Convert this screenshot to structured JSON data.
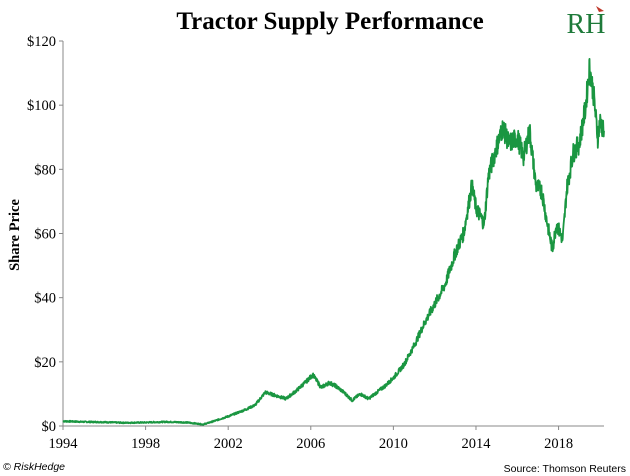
{
  "chart_data": {
    "type": "line",
    "title": "Tractor Supply Performance",
    "xlabel": "",
    "ylabel": "Share Price",
    "xlim": [
      1994,
      2020.2
    ],
    "ylim": [
      0,
      120
    ],
    "x_ticks": [
      1994,
      1998,
      2002,
      2006,
      2010,
      2014,
      2018
    ],
    "y_ticks": [
      0,
      20,
      40,
      60,
      80,
      100,
      120
    ],
    "y_tick_labels": [
      "$0",
      "$20",
      "$40",
      "$60",
      "$80",
      "$100",
      "$120"
    ],
    "grid": false,
    "legend": "none",
    "line_color": "#1a9641",
    "series": [
      {
        "x": [
          1994.0,
          1995.0,
          1996.0,
          1997.0,
          1998.0,
          1999.0,
          2000.0,
          2000.8,
          2001.3,
          2002.0,
          2002.8,
          2003.3,
          2003.8,
          2004.3,
          2004.8,
          2005.3,
          2005.8,
          2006.1,
          2006.5,
          2006.9,
          2007.2,
          2007.6,
          2008.0,
          2008.4,
          2008.8,
          2009.2,
          2009.6,
          2010.0,
          2010.5,
          2011.0,
          2011.5,
          2012.0,
          2012.5,
          2013.0,
          2013.4,
          2013.8,
          2014.0,
          2014.4,
          2014.6,
          2015.0,
          2015.3,
          2015.6,
          2016.0,
          2016.3,
          2016.6,
          2016.9,
          2017.2,
          2017.4,
          2017.7,
          2017.9,
          2018.2,
          2018.4,
          2018.7,
          2019.0,
          2019.3,
          2019.5,
          2019.7,
          2019.9,
          2020.0,
          2020.2
        ],
        "y": [
          1.5,
          1.3,
          1.2,
          1.0,
          1.1,
          1.3,
          1.1,
          0.5,
          1.5,
          3.0,
          5.0,
          6.5,
          10.5,
          9.5,
          8.5,
          11.0,
          14.0,
          16.0,
          12.0,
          13.5,
          12.5,
          10.5,
          8.0,
          10.0,
          8.5,
          10.5,
          12.5,
          15.0,
          19.0,
          25.0,
          32.0,
          38.0,
          44.0,
          54.0,
          60.0,
          75.0,
          68.0,
          63.0,
          78.0,
          87.0,
          93.0,
          88.0,
          90.0,
          84.0,
          92.0,
          75.0,
          73.0,
          65.0,
          55.0,
          63.0,
          58.0,
          74.0,
          85.0,
          88.0,
          99.0,
          112.0,
          103.0,
          90.0,
          95.0,
          92.0
        ]
      }
    ],
    "source": "Source: Thomson Reuters",
    "credit": "© RiskHedge",
    "logo_text": "RH"
  }
}
